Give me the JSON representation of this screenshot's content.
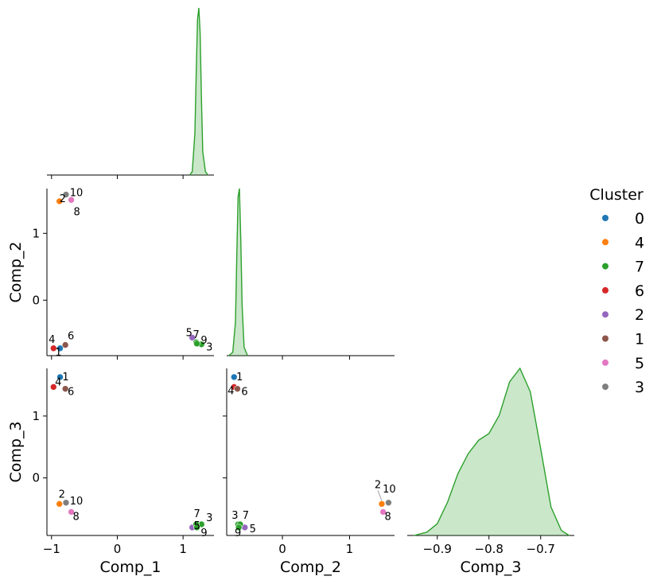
{
  "chart_data": {
    "type": "pairplot",
    "variables": [
      "Comp_1",
      "Comp_2",
      "Comp_3"
    ],
    "hue_label": "Cluster",
    "legend_placement": "right",
    "grid": false,
    "colors": {
      "0": "#1f77b4",
      "4": "#ff7f0e",
      "7": "#2ca02c",
      "6": "#d62728",
      "2": "#9467bd",
      "1": "#8c564b",
      "5": "#e377c2",
      "3": "#7f7f7f"
    },
    "legend": [
      {
        "label": "0",
        "color": "#1f77b4"
      },
      {
        "label": "4",
        "color": "#ff7f0e"
      },
      {
        "label": "7",
        "color": "#2ca02c"
      },
      {
        "label": "6",
        "color": "#d62728"
      },
      {
        "label": "2",
        "color": "#9467bd"
      },
      {
        "label": "1",
        "color": "#8c564b"
      },
      {
        "label": "5",
        "color": "#e377c2"
      },
      {
        "label": "3",
        "color": "#7f7f7f"
      }
    ],
    "axes": {
      "Comp_1": {
        "ticks": [
          -1,
          0,
          1
        ],
        "tick_labels": [
          "−1",
          "0",
          "1"
        ],
        "range": [
          -1.07,
          1.47
        ]
      },
      "Comp_2": {
        "ticks": [
          0,
          1
        ],
        "tick_labels": [
          "0",
          "1"
        ],
        "range": [
          -0.83,
          1.67
        ]
      },
      "Comp_3": {
        "ticks": [
          -0.9,
          -0.8,
          -0.7
        ],
        "tick_labels": [
          "−0.9",
          "−0.8",
          "−0.7"
        ],
        "range": [
          -0.958,
          -0.635
        ]
      },
      "Comp_3_row": {
        "ticks": [
          0,
          1
        ],
        "tick_labels": [
          "0",
          "1"
        ],
        "range": [
          -0.93,
          1.77
        ]
      }
    },
    "points": [
      {
        "label": "1",
        "cluster": "0",
        "comp_1": -0.87,
        "comp_2": -0.72,
        "comp_3": 1.63
      },
      {
        "label": "2",
        "cluster": "4",
        "comp_1": -0.88,
        "comp_2": 1.48,
        "comp_3": -0.42
      },
      {
        "label": "3",
        "cluster": "7",
        "comp_1": 1.28,
        "comp_2": -0.66,
        "comp_3": -0.75
      },
      {
        "label": "4",
        "cluster": "6",
        "comp_1": -0.97,
        "comp_2": -0.72,
        "comp_3": 1.47
      },
      {
        "label": "5",
        "cluster": "2",
        "comp_1": 1.14,
        "comp_2": -0.56,
        "comp_3": -0.8
      },
      {
        "label": "6",
        "cluster": "1",
        "comp_1": -0.79,
        "comp_2": -0.67,
        "comp_3": 1.44
      },
      {
        "label": "7",
        "cluster": "7",
        "comp_1": 1.2,
        "comp_2": -0.63,
        "comp_3": -0.75
      },
      {
        "label": "8",
        "cluster": "5",
        "comp_1": -0.7,
        "comp_2": 1.5,
        "comp_3": -0.55
      },
      {
        "label": "9",
        "cluster": "7",
        "comp_1": 1.21,
        "comp_2": -0.65,
        "comp_3": -0.8
      },
      {
        "label": "10",
        "cluster": "3",
        "comp_1": -0.78,
        "comp_2": 1.58,
        "comp_3": -0.4
      }
    ],
    "kde": {
      "Comp_1": {
        "x": [
          1.1,
          1.14,
          1.18,
          1.2,
          1.22,
          1.24,
          1.26,
          1.28,
          1.3,
          1.34,
          1.38
        ],
        "density": [
          0,
          0.02,
          0.25,
          0.62,
          0.93,
          1.0,
          0.85,
          0.45,
          0.14,
          0.02,
          0
        ]
      },
      "Comp_2": {
        "x": [
          -0.8,
          -0.74,
          -0.7,
          -0.68,
          -0.66,
          -0.64,
          -0.62,
          -0.6,
          -0.57,
          -0.52
        ],
        "density": [
          0,
          0.02,
          0.2,
          0.6,
          0.95,
          1.0,
          0.7,
          0.3,
          0.05,
          0
        ]
      },
      "Comp_3": {
        "x": [
          -0.945,
          -0.92,
          -0.9,
          -0.88,
          -0.86,
          -0.84,
          -0.82,
          -0.8,
          -0.78,
          -0.76,
          -0.74,
          -0.72,
          -0.7,
          -0.68,
          -0.66,
          -0.645
        ],
        "density": [
          0,
          0.02,
          0.07,
          0.2,
          0.37,
          0.49,
          0.57,
          0.61,
          0.72,
          0.92,
          1.0,
          0.86,
          0.52,
          0.17,
          0.03,
          0
        ]
      }
    }
  }
}
